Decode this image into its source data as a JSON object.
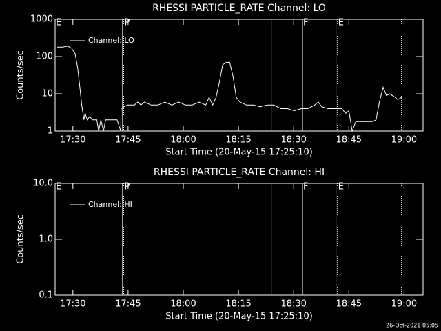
{
  "chart_data": [
    {
      "type": "line",
      "title": "RHESSI PARTICLE_RATE Channel: LO",
      "xlabel": "Start Time (20-May-15 17:25:10)",
      "ylabel": "Counts/sec",
      "ylog": true,
      "legend": "upper-left",
      "color": "#ffffff",
      "xlim": [
        1045.17,
        1145.17
      ],
      "xticks": [
        {
          "value": 1050,
          "label": "17:30"
        },
        {
          "value": 1065,
          "label": "17:45"
        },
        {
          "value": 1080,
          "label": "18:00"
        },
        {
          "value": 1095,
          "label": "18:15"
        },
        {
          "value": 1110,
          "label": "18:30"
        },
        {
          "value": 1125,
          "label": "18:45"
        },
        {
          "value": 1140,
          "label": "19:00"
        }
      ],
      "ylim": [
        1,
        1000
      ],
      "yticks": [
        1,
        10,
        100,
        1000
      ],
      "markers": [
        {
          "x": 1063.5,
          "style": "solid"
        },
        {
          "x": 1063.8,
          "style": "dotted"
        },
        {
          "x": 1103.9,
          "style": "solid"
        },
        {
          "x": 1112.4,
          "style": "solid"
        },
        {
          "x": 1121.5,
          "style": "solid"
        },
        {
          "x": 1121.9,
          "style": "dotted"
        },
        {
          "x": 1139.3,
          "style": "dotted"
        }
      ],
      "marker_labels": [
        {
          "x": 1045.17,
          "text": "E"
        },
        {
          "x": 1063.8,
          "text": "P"
        },
        {
          "x": 1112.4,
          "text": "F"
        },
        {
          "x": 1121.9,
          "text": "E"
        }
      ],
      "series": [
        {
          "name": "Channel: LO",
          "x": [
            1045.7,
            1047.2,
            1048.5,
            1049.6,
            1050.6,
            1051.3,
            1051.9,
            1052.4,
            1053.0,
            1053.3,
            1053.9,
            1054.6,
            1055.2,
            1055.9,
            1056.5,
            1057.0,
            1057.6,
            1058.3,
            1058.9,
            1060.2,
            1062.0,
            1063.0,
            1063.1,
            1063.9,
            1064.8,
            1066.7,
            1067.6,
            1068.5,
            1069.4,
            1071.3,
            1073.1,
            1075.0,
            1076.9,
            1078.7,
            1080.6,
            1082.4,
            1084.3,
            1086.1,
            1087.0,
            1088.0,
            1088.9,
            1089.8,
            1090.7,
            1091.7,
            1092.6,
            1093.5,
            1094.4,
            1095.4,
            1097.2,
            1099.1,
            1100.9,
            1102.8,
            1104.6,
            1106.5,
            1108.3,
            1110.2,
            1112.0,
            1113.9,
            1115.7,
            1116.7,
            1117.6,
            1119.4,
            1121.3,
            1123.1,
            1124.1,
            1125.0,
            1125.9,
            1126.9,
            1128.7,
            1131.5,
            1132.4,
            1133.3,
            1134.3,
            1135.2,
            1136.1,
            1137.6,
            1138.3,
            1139.3
          ],
          "values": [
            180,
            180,
            190,
            170,
            120,
            50,
            15,
            5,
            2,
            3,
            2,
            2.5,
            2,
            2,
            2,
            1,
            2,
            1,
            2,
            2,
            2,
            1,
            4,
            4.5,
            5,
            5,
            6,
            5,
            6,
            5,
            5,
            6,
            5,
            6,
            5,
            5,
            6,
            5,
            8,
            5,
            8,
            20,
            60,
            70,
            70,
            30,
            8,
            6,
            5,
            5,
            4.5,
            5,
            5,
            4,
            4,
            3.5,
            4,
            4,
            5,
            6,
            4.5,
            4,
            4,
            4,
            3,
            3.5,
            1,
            1.8,
            1.8,
            1.8,
            2,
            6,
            15,
            9,
            10,
            8,
            7,
            8
          ]
        }
      ]
    },
    {
      "type": "line",
      "title": "RHESSI PARTICLE_RATE Channel: HI",
      "xlabel": "Start Time (20-May-15 17:25:10)",
      "ylabel": "Counts/sec",
      "ylog": true,
      "legend": "upper-left",
      "color": "#ffffff",
      "xlim": [
        1045.17,
        1145.17
      ],
      "xticks": [
        {
          "value": 1050,
          "label": "17:30"
        },
        {
          "value": 1065,
          "label": "17:45"
        },
        {
          "value": 1080,
          "label": "18:00"
        },
        {
          "value": 1095,
          "label": "18:15"
        },
        {
          "value": 1110,
          "label": "18:30"
        },
        {
          "value": 1125,
          "label": "18:45"
        },
        {
          "value": 1140,
          "label": "19:00"
        }
      ],
      "ylim": [
        0.1,
        10
      ],
      "yticks": [
        0.1,
        {
          "value": 1,
          "label": "1.0"
        },
        {
          "value": 10,
          "label": "10.0"
        }
      ],
      "markers": [
        {
          "x": 1063.5,
          "style": "solid"
        },
        {
          "x": 1063.8,
          "style": "dotted"
        },
        {
          "x": 1103.9,
          "style": "solid"
        },
        {
          "x": 1112.4,
          "style": "solid"
        },
        {
          "x": 1121.5,
          "style": "solid"
        },
        {
          "x": 1121.9,
          "style": "dotted"
        },
        {
          "x": 1139.3,
          "style": "dotted"
        }
      ],
      "marker_labels": [
        {
          "x": 1045.17,
          "text": "E"
        },
        {
          "x": 1063.8,
          "text": "P"
        },
        {
          "x": 1112.4,
          "text": "F"
        },
        {
          "x": 1121.9,
          "text": "E"
        }
      ],
      "series": [
        {
          "name": "Channel: HI",
          "x": [],
          "values": []
        }
      ]
    }
  ],
  "footer": "26-Oct-2021 05:05"
}
